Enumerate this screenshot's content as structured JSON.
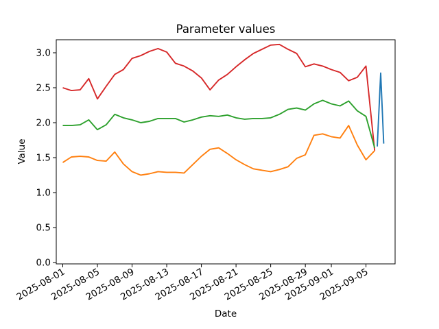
{
  "chart_data": {
    "type": "line",
    "title": "Parameter values",
    "xlabel": "Date",
    "ylabel": "Value",
    "grid": false,
    "legend": "none",
    "x_axis": {
      "start_date": "2025-08-01",
      "frequency": "daily",
      "tick_labels": [
        "2025-08-01",
        "2025-08-05",
        "2025-08-09",
        "2025-08-13",
        "2025-08-17",
        "2025-08-21",
        "2025-08-25",
        "2025-08-29",
        "2025-09-01",
        "2025-09-05"
      ],
      "tick_day_offsets": [
        0,
        4,
        8,
        12,
        16,
        20,
        24,
        28,
        31,
        35
      ]
    },
    "y_axis": {
      "tick_labels": [
        "0.0",
        "0.5",
        "1.0",
        "1.5",
        "2.0",
        "2.5",
        "3.0"
      ],
      "tick_values": [
        0.0,
        0.5,
        1.0,
        1.5,
        2.0,
        2.5,
        3.0
      ],
      "range_approx": [
        -0.02,
        3.19
      ]
    },
    "series": [
      {
        "name": "red-line",
        "color": "#d62728",
        "start_date": "2025-08-01",
        "end_date": "2025-09-06",
        "values": [
          2.5,
          2.46,
          2.47,
          2.63,
          2.34,
          2.52,
          2.69,
          2.76,
          2.92,
          2.96,
          3.02,
          3.06,
          3.01,
          2.85,
          2.81,
          2.74,
          2.64,
          2.47,
          2.61,
          2.69,
          2.8,
          2.9,
          2.99,
          3.05,
          3.11,
          3.12,
          3.05,
          2.99,
          2.8,
          2.84,
          2.81,
          2.76,
          2.72,
          2.6,
          2.65,
          2.81,
          1.6
        ]
      },
      {
        "name": "green-line",
        "color": "#2ca02c",
        "start_date": "2025-08-01",
        "end_date": "2025-09-06",
        "values": [
          1.96,
          1.96,
          1.97,
          2.04,
          1.9,
          1.97,
          2.12,
          2.07,
          2.04,
          2.0,
          2.02,
          2.06,
          2.06,
          2.06,
          2.01,
          2.04,
          2.08,
          2.1,
          2.09,
          2.11,
          2.07,
          2.05,
          2.06,
          2.06,
          2.07,
          2.12,
          2.19,
          2.21,
          2.18,
          2.27,
          2.32,
          2.27,
          2.24,
          2.31,
          2.17,
          2.09,
          1.64
        ]
      },
      {
        "name": "orange-line",
        "color": "#ff7f0e",
        "start_date": "2025-08-01",
        "end_date": "2025-09-06",
        "values": [
          1.43,
          1.51,
          1.52,
          1.51,
          1.46,
          1.45,
          1.58,
          1.41,
          1.3,
          1.25,
          1.27,
          1.3,
          1.29,
          1.29,
          1.28,
          1.4,
          1.52,
          1.62,
          1.64,
          1.56,
          1.47,
          1.4,
          1.34,
          1.32,
          1.3,
          1.33,
          1.37,
          1.49,
          1.54,
          1.82,
          1.84,
          1.8,
          1.78,
          1.96,
          1.68,
          1.47,
          1.6
        ]
      },
      {
        "name": "blue-line",
        "color": "#1f77b4",
        "start_date": "2025-09-06",
        "end_date": "2025-09-07",
        "days_from_start": [
          36.3,
          36.7,
          37.05
        ],
        "values": [
          1.66,
          2.71,
          1.7
        ]
      }
    ]
  }
}
